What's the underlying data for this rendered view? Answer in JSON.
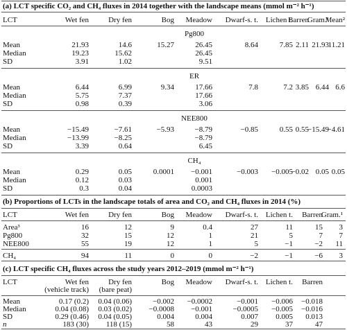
{
  "sections": [
    {
      "title": "(a) LCT specific CO₂ and CH₄ fluxes in 2014 together with the landscape means (mmol m⁻² h⁻¹)",
      "columns": [
        "LCT",
        "Wet fen",
        "Dry fen",
        "Bog",
        "Meadow",
        "Dwarf-s. t.",
        "Lichen t.",
        "Barren",
        "Gram.¹",
        "Mean²"
      ],
      "blocks": [
        {
          "label": "Pg800",
          "rows": [
            {
              "label": "Mean",
              "cells": [
                "21.93",
                "14.6",
                "15.27",
                "26.45",
                "8.64",
                "7.85",
                "2.11",
                "21.93",
                "11.21"
              ]
            },
            {
              "label": "Median",
              "cells": [
                "19.23",
                "15.62",
                null,
                "26.45",
                null,
                null,
                null,
                null,
                null
              ]
            },
            {
              "label": "SD",
              "cells": [
                "3.91",
                "1.02",
                null,
                "9.51",
                null,
                null,
                null,
                null,
                null
              ]
            }
          ]
        },
        {
          "label": "ER",
          "rows": [
            {
              "label": "Mean",
              "cells": [
                "6.44",
                "6.99",
                "9.34",
                "17.66",
                "7.8",
                "7.2",
                "3.85",
                "6.44",
                "6.6"
              ]
            },
            {
              "label": "Median",
              "cells": [
                "5.75",
                "7.37",
                null,
                "17.66",
                null,
                null,
                null,
                null,
                null
              ]
            },
            {
              "label": "SD",
              "cells": [
                "0.98",
                "0.39",
                null,
                "3.06",
                null,
                null,
                null,
                null,
                null
              ]
            }
          ]
        },
        {
          "label": "NEE800",
          "rows": [
            {
              "label": "Mean",
              "cells": [
                "−15.49",
                "−7.61",
                "−5.93",
                "−8.79",
                "−0.85",
                "0.55",
                "0.55",
                "−15.49",
                "−4.61"
              ]
            },
            {
              "label": "Median",
              "cells": [
                "−13.99",
                "−8.25",
                null,
                "−8.79",
                null,
                null,
                null,
                null,
                null
              ]
            },
            {
              "label": "SD",
              "cells": [
                "3.39",
                "0.64",
                null,
                "6.45",
                null,
                null,
                null,
                null,
                null
              ]
            }
          ]
        },
        {
          "label": "CH₄",
          "rows": [
            {
              "label": "Mean",
              "cells": [
                "0.29",
                "0.05",
                "0.0001",
                "−0.001",
                "−0.003",
                "−0.005",
                "−0.02",
                "0.05",
                "0.05"
              ]
            },
            {
              "label": "Median",
              "cells": [
                "0.12",
                "0.03",
                null,
                "0.001",
                null,
                null,
                null,
                null,
                null
              ]
            },
            {
              "label": "SD",
              "cells": [
                "0.3",
                "0.04",
                null,
                "0.0003",
                null,
                null,
                null,
                null,
                null
              ]
            }
          ]
        }
      ]
    },
    {
      "title": "(b) Proportions of LCTs in the landscape totals of area and CO₂ and CH₄ fluxes in 2014 (%)",
      "columns": [
        "LCT",
        "Wet fen",
        "Dry fen",
        "Bog",
        "Meadow",
        "Dwarf-s. t.",
        "Lichen t.",
        "Barren",
        "Gram.¹"
      ],
      "groups": [
        [
          {
            "label": "Area³",
            "cells": [
              "16",
              "12",
              "9",
              "0.4",
              "27",
              "11",
              "15",
              "3"
            ]
          },
          {
            "label": "Pg800",
            "cells": [
              "32",
              "15",
              "12",
              "1",
              "21",
              "5",
              "7",
              "7"
            ]
          },
          {
            "label": "NEE800",
            "cells": [
              "55",
              "19",
              "12",
              "1",
              "5",
              "−1",
              "−2",
              "11"
            ]
          }
        ],
        [
          {
            "label": "CH₄",
            "cells": [
              "94",
              "11",
              "0",
              "0",
              "−2",
              "−1",
              "−6",
              "3"
            ]
          }
        ]
      ]
    },
    {
      "title": "(c) LCT specific CH₄ fluxes across the study years 2012–2019 (mmol m⁻² h⁻¹)",
      "columns": [
        "LCT",
        "Wet fen",
        "Dry fen",
        "Bog",
        "Meadow",
        "Dwarf-s. t.",
        "Lichen t.",
        "Barren"
      ],
      "column_subtitles": {
        "1": "(vehicle track)",
        "2": "(bare peat)"
      },
      "rows": [
        {
          "label": "Mean",
          "cells": [
            "0.17 (0.2)",
            "0.04 (0.06)",
            "−0.002",
            "−0.0002",
            "−0.001",
            "−0.006",
            "−0.018"
          ]
        },
        {
          "label": "Median",
          "cells": [
            "0.04 (0.08)",
            "0.03 (0.02)",
            "−0.0008",
            "−0.001",
            "−0.0005",
            "−0.005",
            "−0.016"
          ]
        },
        {
          "label": "SD",
          "cells": [
            "0.29 (0.46)",
            "0.04 (0.05)",
            "0.004",
            "0.004",
            "0.007",
            "0.005",
            "0.013"
          ]
        },
        {
          "label": "n",
          "cells": [
            "183 (30)",
            "118 (15)",
            "58",
            "43",
            "29",
            "37",
            "47"
          ]
        }
      ]
    }
  ]
}
